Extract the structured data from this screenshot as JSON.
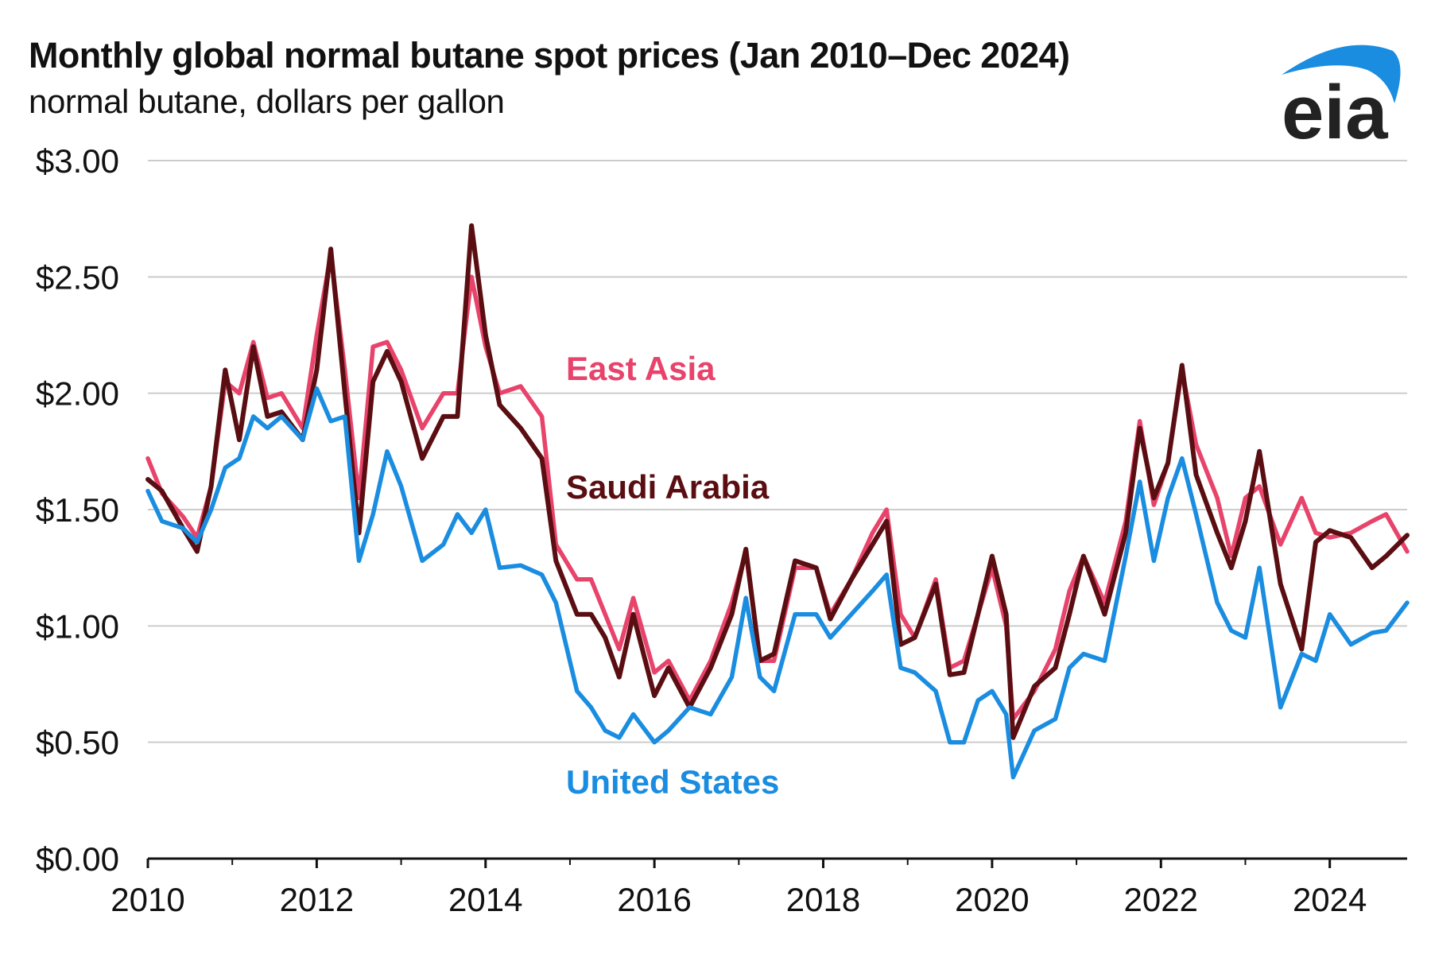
{
  "header": {
    "title": "Monthly global normal butane spot prices (Jan 2010–Dec 2024)",
    "subtitle": "normal butane, dollars per gallon",
    "logo_text": "eia"
  },
  "colors": {
    "east_asia": "#e8436b",
    "saudi_arabia": "#5a0e12",
    "united_states": "#1a8de0",
    "gridline": "#cccccc",
    "logo_arc": "#1a8de0",
    "logo_text": "#222222"
  },
  "chart_data": {
    "type": "line",
    "title": "Monthly global normal butane spot prices (Jan 2010–Dec 2024)",
    "subtitle": "normal butane, dollars per gallon",
    "xlim": [
      "2010-01",
      "2024-12"
    ],
    "ylim": [
      0,
      3
    ],
    "y_ticks": [
      0,
      0.5,
      1.0,
      1.5,
      2.0,
      2.5,
      3.0
    ],
    "y_tick_labels": [
      "$0.00",
      "$0.50",
      "$1.00",
      "$1.50",
      "$2.00",
      "$2.50",
      "$3.00"
    ],
    "x_ticks": [
      "2010-01",
      "2012-01",
      "2014-01",
      "2016-01",
      "2018-01",
      "2020-01",
      "2022-01",
      "2024-01"
    ],
    "x_tick_labels": [
      "2010",
      "2012",
      "2014",
      "2016",
      "2018",
      "2020",
      "2022",
      "2024"
    ],
    "grid": "horizontal",
    "series": [
      {
        "name": "East Asia",
        "color": "#e8436b",
        "points": [
          [
            "2010-01",
            1.72
          ],
          [
            "2010-03",
            1.57
          ],
          [
            "2010-06",
            1.47
          ],
          [
            "2010-08",
            1.38
          ],
          [
            "2010-10",
            1.6
          ],
          [
            "2010-12",
            2.05
          ],
          [
            "2011-02",
            2.0
          ],
          [
            "2011-04",
            2.22
          ],
          [
            "2011-06",
            1.98
          ],
          [
            "2011-08",
            2.0
          ],
          [
            "2011-11",
            1.85
          ],
          [
            "2012-01",
            2.25
          ],
          [
            "2012-03",
            2.6
          ],
          [
            "2012-05",
            2.1
          ],
          [
            "2012-07",
            1.55
          ],
          [
            "2012-09",
            2.2
          ],
          [
            "2012-11",
            2.22
          ],
          [
            "2013-01",
            2.1
          ],
          [
            "2013-04",
            1.85
          ],
          [
            "2013-07",
            2.0
          ],
          [
            "2013-09",
            2.0
          ],
          [
            "2013-11",
            2.5
          ],
          [
            "2014-01",
            2.2
          ],
          [
            "2014-03",
            2.0
          ],
          [
            "2014-06",
            2.03
          ],
          [
            "2014-09",
            1.9
          ],
          [
            "2014-11",
            1.35
          ],
          [
            "2015-02",
            1.2
          ],
          [
            "2015-04",
            1.2
          ],
          [
            "2015-06",
            1.05
          ],
          [
            "2015-08",
            0.9
          ],
          [
            "2015-10",
            1.12
          ],
          [
            "2016-01",
            0.8
          ],
          [
            "2016-03",
            0.85
          ],
          [
            "2016-06",
            0.68
          ],
          [
            "2016-09",
            0.85
          ],
          [
            "2016-12",
            1.1
          ],
          [
            "2017-02",
            1.32
          ],
          [
            "2017-04",
            0.85
          ],
          [
            "2017-06",
            0.85
          ],
          [
            "2017-09",
            1.25
          ],
          [
            "2017-12",
            1.25
          ],
          [
            "2018-02",
            1.05
          ],
          [
            "2018-05",
            1.2
          ],
          [
            "2018-08",
            1.4
          ],
          [
            "2018-10",
            1.5
          ],
          [
            "2018-12",
            1.05
          ],
          [
            "2019-02",
            0.95
          ],
          [
            "2019-05",
            1.2
          ],
          [
            "2019-07",
            0.82
          ],
          [
            "2019-09",
            0.85
          ],
          [
            "2019-11",
            1.05
          ],
          [
            "2020-01",
            1.25
          ],
          [
            "2020-03",
            1.0
          ],
          [
            "2020-04",
            0.6
          ],
          [
            "2020-07",
            0.72
          ],
          [
            "2020-10",
            0.9
          ],
          [
            "2020-12",
            1.15
          ],
          [
            "2021-02",
            1.3
          ],
          [
            "2021-05",
            1.1
          ],
          [
            "2021-08",
            1.45
          ],
          [
            "2021-10",
            1.88
          ],
          [
            "2021-12",
            1.52
          ],
          [
            "2022-02",
            1.7
          ],
          [
            "2022-04",
            2.1
          ],
          [
            "2022-06",
            1.78
          ],
          [
            "2022-09",
            1.55
          ],
          [
            "2022-11",
            1.3
          ],
          [
            "2023-01",
            1.55
          ],
          [
            "2023-03",
            1.6
          ],
          [
            "2023-06",
            1.35
          ],
          [
            "2023-09",
            1.55
          ],
          [
            "2023-11",
            1.4
          ],
          [
            "2024-01",
            1.38
          ],
          [
            "2024-04",
            1.4
          ],
          [
            "2024-07",
            1.45
          ],
          [
            "2024-09",
            1.48
          ],
          [
            "2024-12",
            1.32
          ]
        ]
      },
      {
        "name": "Saudi Arabia",
        "color": "#5a0e12",
        "points": [
          [
            "2010-01",
            1.63
          ],
          [
            "2010-03",
            1.58
          ],
          [
            "2010-06",
            1.42
          ],
          [
            "2010-08",
            1.32
          ],
          [
            "2010-10",
            1.6
          ],
          [
            "2010-12",
            2.1
          ],
          [
            "2011-02",
            1.8
          ],
          [
            "2011-04",
            2.2
          ],
          [
            "2011-06",
            1.9
          ],
          [
            "2011-08",
            1.92
          ],
          [
            "2011-11",
            1.8
          ],
          [
            "2012-01",
            2.1
          ],
          [
            "2012-03",
            2.62
          ],
          [
            "2012-05",
            2.0
          ],
          [
            "2012-07",
            1.4
          ],
          [
            "2012-09",
            2.05
          ],
          [
            "2012-11",
            2.18
          ],
          [
            "2013-01",
            2.05
          ],
          [
            "2013-04",
            1.72
          ],
          [
            "2013-07",
            1.9
          ],
          [
            "2013-09",
            1.9
          ],
          [
            "2013-11",
            2.72
          ],
          [
            "2014-01",
            2.25
          ],
          [
            "2014-03",
            1.95
          ],
          [
            "2014-06",
            1.85
          ],
          [
            "2014-09",
            1.72
          ],
          [
            "2014-11",
            1.28
          ],
          [
            "2015-02",
            1.05
          ],
          [
            "2015-04",
            1.05
          ],
          [
            "2015-06",
            0.95
          ],
          [
            "2015-08",
            0.78
          ],
          [
            "2015-10",
            1.05
          ],
          [
            "2016-01",
            0.7
          ],
          [
            "2016-03",
            0.82
          ],
          [
            "2016-06",
            0.65
          ],
          [
            "2016-09",
            0.82
          ],
          [
            "2016-12",
            1.05
          ],
          [
            "2017-02",
            1.33
          ],
          [
            "2017-04",
            0.85
          ],
          [
            "2017-06",
            0.88
          ],
          [
            "2017-09",
            1.28
          ],
          [
            "2017-12",
            1.25
          ],
          [
            "2018-02",
            1.03
          ],
          [
            "2018-05",
            1.2
          ],
          [
            "2018-08",
            1.35
          ],
          [
            "2018-10",
            1.45
          ],
          [
            "2018-12",
            0.92
          ],
          [
            "2019-02",
            0.95
          ],
          [
            "2019-05",
            1.18
          ],
          [
            "2019-07",
            0.79
          ],
          [
            "2019-09",
            0.8
          ],
          [
            "2019-11",
            1.05
          ],
          [
            "2020-01",
            1.3
          ],
          [
            "2020-03",
            1.05
          ],
          [
            "2020-04",
            0.52
          ],
          [
            "2020-07",
            0.74
          ],
          [
            "2020-10",
            0.82
          ],
          [
            "2020-12",
            1.05
          ],
          [
            "2021-02",
            1.3
          ],
          [
            "2021-05",
            1.05
          ],
          [
            "2021-08",
            1.4
          ],
          [
            "2021-10",
            1.85
          ],
          [
            "2021-12",
            1.55
          ],
          [
            "2022-02",
            1.7
          ],
          [
            "2022-04",
            2.12
          ],
          [
            "2022-06",
            1.65
          ],
          [
            "2022-09",
            1.4
          ],
          [
            "2022-11",
            1.25
          ],
          [
            "2023-01",
            1.45
          ],
          [
            "2023-03",
            1.75
          ],
          [
            "2023-06",
            1.18
          ],
          [
            "2023-09",
            0.9
          ],
          [
            "2023-11",
            1.36
          ],
          [
            "2024-01",
            1.41
          ],
          [
            "2024-04",
            1.38
          ],
          [
            "2024-07",
            1.25
          ],
          [
            "2024-09",
            1.3
          ],
          [
            "2024-12",
            1.39
          ]
        ]
      },
      {
        "name": "United States",
        "color": "#1a8de0",
        "points": [
          [
            "2010-01",
            1.58
          ],
          [
            "2010-03",
            1.45
          ],
          [
            "2010-06",
            1.42
          ],
          [
            "2010-08",
            1.36
          ],
          [
            "2010-10",
            1.5
          ],
          [
            "2010-12",
            1.68
          ],
          [
            "2011-02",
            1.72
          ],
          [
            "2011-04",
            1.9
          ],
          [
            "2011-06",
            1.85
          ],
          [
            "2011-08",
            1.9
          ],
          [
            "2011-11",
            1.8
          ],
          [
            "2012-01",
            2.02
          ],
          [
            "2012-03",
            1.88
          ],
          [
            "2012-05",
            1.9
          ],
          [
            "2012-07",
            1.28
          ],
          [
            "2012-09",
            1.48
          ],
          [
            "2012-11",
            1.75
          ],
          [
            "2013-01",
            1.6
          ],
          [
            "2013-04",
            1.28
          ],
          [
            "2013-07",
            1.35
          ],
          [
            "2013-09",
            1.48
          ],
          [
            "2013-11",
            1.4
          ],
          [
            "2014-01",
            1.5
          ],
          [
            "2014-03",
            1.25
          ],
          [
            "2014-06",
            1.26
          ],
          [
            "2014-09",
            1.22
          ],
          [
            "2014-11",
            1.1
          ],
          [
            "2015-02",
            0.72
          ],
          [
            "2015-04",
            0.65
          ],
          [
            "2015-06",
            0.55
          ],
          [
            "2015-08",
            0.52
          ],
          [
            "2015-10",
            0.62
          ],
          [
            "2016-01",
            0.5
          ],
          [
            "2016-03",
            0.55
          ],
          [
            "2016-06",
            0.65
          ],
          [
            "2016-09",
            0.62
          ],
          [
            "2016-12",
            0.78
          ],
          [
            "2017-02",
            1.12
          ],
          [
            "2017-04",
            0.78
          ],
          [
            "2017-06",
            0.72
          ],
          [
            "2017-09",
            1.05
          ],
          [
            "2017-12",
            1.05
          ],
          [
            "2018-02",
            0.95
          ],
          [
            "2018-05",
            1.05
          ],
          [
            "2018-08",
            1.15
          ],
          [
            "2018-10",
            1.22
          ],
          [
            "2018-12",
            0.82
          ],
          [
            "2019-02",
            0.8
          ],
          [
            "2019-05",
            0.72
          ],
          [
            "2019-07",
            0.5
          ],
          [
            "2019-09",
            0.5
          ],
          [
            "2019-11",
            0.68
          ],
          [
            "2020-01",
            0.72
          ],
          [
            "2020-03",
            0.62
          ],
          [
            "2020-04",
            0.35
          ],
          [
            "2020-07",
            0.55
          ],
          [
            "2020-10",
            0.6
          ],
          [
            "2020-12",
            0.82
          ],
          [
            "2021-02",
            0.88
          ],
          [
            "2021-05",
            0.85
          ],
          [
            "2021-08",
            1.3
          ],
          [
            "2021-10",
            1.62
          ],
          [
            "2021-12",
            1.28
          ],
          [
            "2022-02",
            1.55
          ],
          [
            "2022-04",
            1.72
          ],
          [
            "2022-06",
            1.48
          ],
          [
            "2022-09",
            1.1
          ],
          [
            "2022-11",
            0.98
          ],
          [
            "2023-01",
            0.95
          ],
          [
            "2023-03",
            1.25
          ],
          [
            "2023-06",
            0.65
          ],
          [
            "2023-09",
            0.88
          ],
          [
            "2023-11",
            0.85
          ],
          [
            "2024-01",
            1.05
          ],
          [
            "2024-04",
            0.92
          ],
          [
            "2024-07",
            0.97
          ],
          [
            "2024-09",
            0.98
          ],
          [
            "2024-12",
            1.1
          ]
        ]
      }
    ],
    "annotations": [
      {
        "text": "East Asia",
        "series": "East Asia"
      },
      {
        "text": "Saudi Arabia",
        "series": "Saudi Arabia"
      },
      {
        "text": "United States",
        "series": "United States"
      }
    ]
  }
}
